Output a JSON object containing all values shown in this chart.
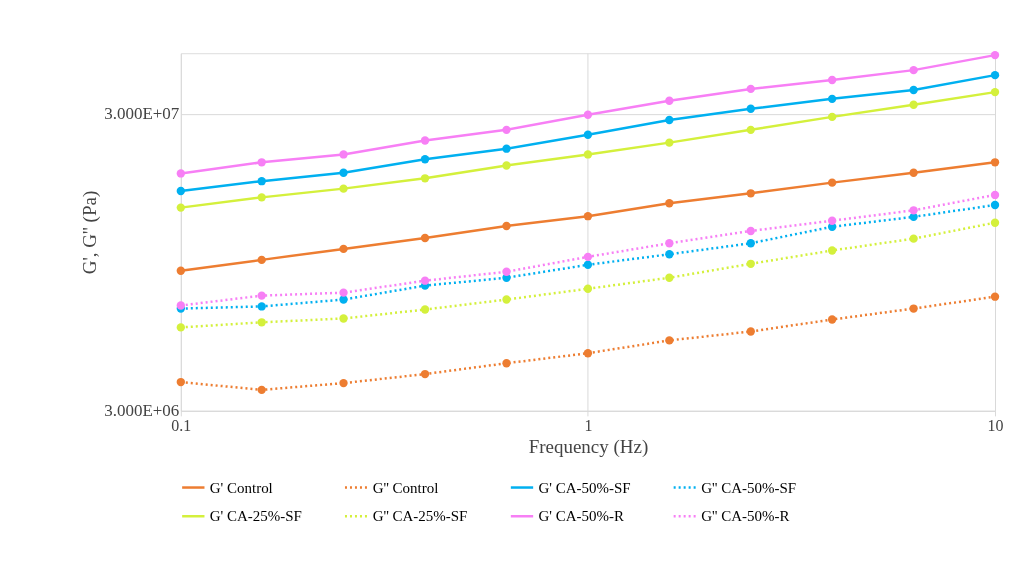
{
  "chart_data": {
    "type": "line",
    "xlabel": "Frequency (Hz)",
    "ylabel": "G', G'' (Pa)",
    "x": [
      0.1,
      0.158,
      0.251,
      0.398,
      0.631,
      1,
      1.585,
      2.512,
      3.98,
      6.31,
      10
    ],
    "log": "xy",
    "grid": true,
    "legend": "bottom",
    "marker": "circle",
    "xlim": [
      0.1,
      10
    ],
    "xticks": [
      0.1,
      1,
      10
    ],
    "ylim": [
      3000000,
      48000000
    ],
    "yticks": [
      {
        "value": 3000000,
        "label": "3.000E+06"
      },
      {
        "value": 30000000,
        "label": "3.000E+07"
      }
    ],
    "series": [
      {
        "name": "G'   Control",
        "color": "#ed7d31",
        "line_style": "solid",
        "values": [
          8890000,
          9670000,
          10530000,
          11460000,
          12570000,
          13570000,
          15000000,
          16200000,
          17600000,
          19000000,
          20600000
        ]
      },
      {
        "name": "G''   Control",
        "color": "#ed7d31",
        "line_style": "dotted",
        "values": [
          3750000,
          3530000,
          3720000,
          3990000,
          4340000,
          4690000,
          5180000,
          5550000,
          6090000,
          6630000,
          7270000
        ]
      },
      {
        "name": "G'   CA-50%-SF",
        "color": "#00b0f0",
        "line_style": "solid",
        "values": [
          16500000,
          17800000,
          19000000,
          21100000,
          22900000,
          25500000,
          28600000,
          31200000,
          33700000,
          36100000,
          40500000
        ]
      },
      {
        "name": "G''   CA-50%-SF",
        "color": "#00b0f0",
        "line_style": "dotted",
        "values": [
          6630000,
          6740000,
          7110000,
          7920000,
          8420000,
          9310000,
          10100000,
          11000000,
          12500000,
          13500000,
          14800000
        ]
      },
      {
        "name": "G'   CA-25%-SF",
        "color": "#d4f03c",
        "line_style": "solid",
        "values": [
          14500000,
          15700000,
          16800000,
          18200000,
          20100000,
          21900000,
          24000000,
          26500000,
          29300000,
          32200000,
          35500000
        ]
      },
      {
        "name": "G''   CA-25%-SF",
        "color": "#d4f03c",
        "line_style": "dotted",
        "values": [
          5730000,
          5960000,
          6140000,
          6580000,
          7110000,
          7730000,
          8420000,
          9380000,
          10400000,
          11400000,
          12900000
        ]
      },
      {
        "name": "G'   CA-50%-R",
        "color": "#f77ff5",
        "line_style": "solid",
        "values": [
          18900000,
          20600000,
          21900000,
          24400000,
          26500000,
          29800000,
          33200000,
          36400000,
          39000000,
          42100000,
          47300000
        ]
      },
      {
        "name": "G''   CA-50%-R",
        "color": "#f77ff5",
        "line_style": "dotted",
        "values": [
          6790000,
          7330000,
          7500000,
          8230000,
          8820000,
          9900000,
          11000000,
          12100000,
          13100000,
          14200000,
          16000000
        ]
      }
    ]
  }
}
